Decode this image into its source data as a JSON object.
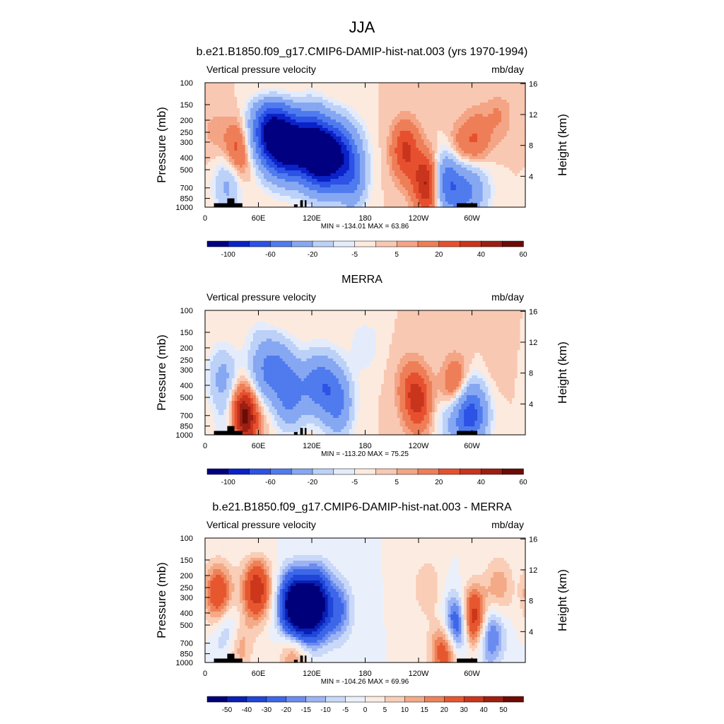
{
  "figure_title": "JJA",
  "colors": {
    "seq11": [
      "#000080",
      "#0a22c8",
      "#2c52e6",
      "#4f7bee",
      "#86a7f2",
      "#bcd1f8",
      "#e4ecfb",
      "#fdeade",
      "#f9c8b2",
      "#f4a585",
      "#ee7e57",
      "#e7502f",
      "#c9341c",
      "#9c1f12",
      "#6b0c06"
    ],
    "seq_diff": [
      "#00007a",
      "#0a1fb4",
      "#1f46d8",
      "#3d67e8",
      "#6a8bef",
      "#9cb3f4",
      "#c9d8f8",
      "#eaf0fb",
      "#fcebe1",
      "#f9cdb6",
      "#f4aa87",
      "#ee8158",
      "#e6572f",
      "#cc361b",
      "#a01f10",
      "#6f0a05"
    ]
  },
  "chart_data": [
    {
      "type": "heatmap",
      "title": "b.e21.B1850.f09_g17.CMIP6-DAMIP-hist-nat.003 (yrs 1970-1994)",
      "subtitle_left": "Vertical pressure velocity",
      "units": "mb/day",
      "ylabel": "Pressure (mb)",
      "ylabel_right": "Height (km)",
      "x_ticks": [
        "0",
        "60E",
        "120E",
        "180",
        "120W",
        "60W"
      ],
      "y_ticks": [
        "100",
        "150",
        "200",
        "250",
        "300",
        "400",
        "500",
        "700",
        "850",
        "1000"
      ],
      "y_ticks_right": [
        "16",
        "12",
        "8",
        "4"
      ],
      "stats": "MIN = -134.01  MAX =  63.86",
      "colorbar_labels": [
        "-100",
        "-60",
        "-20",
        "-5",
        "5",
        "20",
        "40",
        "60"
      ],
      "features": [
        {
          "lon": 37,
          "p": 350,
          "value": 28
        },
        {
          "lon": 26,
          "p": 650,
          "value": -25
        },
        {
          "lon": 75,
          "p": 240,
          "value": -95
        },
        {
          "lon": 90,
          "p": 350,
          "value": -85
        },
        {
          "lon": 118,
          "p": 300,
          "value": -90
        },
        {
          "lon": 132,
          "p": 450,
          "value": -80
        },
        {
          "lon": 150,
          "p": 350,
          "value": -60
        },
        {
          "lon": 165,
          "p": 600,
          "value": -40
        },
        {
          "lon": 225,
          "p": 350,
          "value": 32
        },
        {
          "lon": 250,
          "p": 650,
          "value": 45
        },
        {
          "lon": 272,
          "p": 600,
          "value": -45
        },
        {
          "lon": 285,
          "p": 400,
          "value": 22
        },
        {
          "lon": 292,
          "p": 700,
          "value": -50
        },
        {
          "lon": 305,
          "p": 300,
          "value": 20
        },
        {
          "lon": 330,
          "p": 180,
          "value": 10
        },
        {
          "lon": 120,
          "p": 110,
          "value": -8
        },
        {
          "lon": 10,
          "p": 250,
          "value": 6
        }
      ]
    },
    {
      "type": "heatmap",
      "title": "MERRA",
      "subtitle_left": "Vertical pressure velocity",
      "units": "mb/day",
      "ylabel": "Pressure (mb)",
      "ylabel_right": "Height (km)",
      "x_ticks": [
        "0",
        "60E",
        "120E",
        "180",
        "120W",
        "60W"
      ],
      "y_ticks": [
        "100",
        "150",
        "200",
        "250",
        "300",
        "400",
        "500",
        "700",
        "850",
        "1000"
      ],
      "y_ticks_right": [
        "16",
        "12",
        "8",
        "4"
      ],
      "stats": "MIN = -113.20  MAX =  75.25",
      "colorbar_labels": [
        "-100",
        "-60",
        "-20",
        "-5",
        "5",
        "20",
        "40",
        "60"
      ],
      "features": [
        {
          "lon": 20,
          "p": 350,
          "value": -25
        },
        {
          "lon": 40,
          "p": 650,
          "value": 25
        },
        {
          "lon": 45,
          "p": 750,
          "value": 40
        },
        {
          "lon": 30,
          "p": 800,
          "value": -20
        },
        {
          "lon": 75,
          "p": 300,
          "value": -50
        },
        {
          "lon": 95,
          "p": 500,
          "value": -40
        },
        {
          "lon": 130,
          "p": 400,
          "value": -55
        },
        {
          "lon": 150,
          "p": 600,
          "value": -35
        },
        {
          "lon": 230,
          "p": 400,
          "value": 14
        },
        {
          "lon": 240,
          "p": 550,
          "value": 30
        },
        {
          "lon": 282,
          "p": 450,
          "value": 35
        },
        {
          "lon": 290,
          "p": 700,
          "value": -50
        },
        {
          "lon": 300,
          "p": 650,
          "value": -35
        },
        {
          "lon": 330,
          "p": 250,
          "value": 4
        },
        {
          "lon": 180,
          "p": 180,
          "value": -10
        },
        {
          "lon": 60,
          "p": 120,
          "value": -6
        }
      ]
    },
    {
      "type": "heatmap",
      "title": "b.e21.B1850.f09_g17.CMIP6-DAMIP-hist-nat.003 - MERRA",
      "subtitle_left": "Vertical pressure velocity",
      "units": "mb/day",
      "ylabel": "Pressure (mb)",
      "ylabel_right": "Height (km)",
      "x_ticks": [
        "0",
        "60E",
        "120E",
        "180",
        "120W",
        "60W"
      ],
      "y_ticks": [
        "100",
        "150",
        "200",
        "250",
        "300",
        "400",
        "500",
        "700",
        "850",
        "1000"
      ],
      "y_ticks_right": [
        "16",
        "12",
        "8",
        "4"
      ],
      "stats": "MIN = -104.26  MAX =  69.96",
      "colorbar_labels": [
        "-50",
        "-40",
        "-30",
        "-20",
        "-15",
        "-10",
        "-5",
        "0",
        "5",
        "10",
        "15",
        "20",
        "30",
        "40",
        "50"
      ],
      "features": [
        {
          "lon": 15,
          "p": 280,
          "value": 30
        },
        {
          "lon": 28,
          "p": 600,
          "value": -25
        },
        {
          "lon": 35,
          "p": 700,
          "value": 25
        },
        {
          "lon": 58,
          "p": 260,
          "value": 38
        },
        {
          "lon": 100,
          "p": 320,
          "value": -45
        },
        {
          "lon": 112,
          "p": 420,
          "value": -50
        },
        {
          "lon": 125,
          "p": 300,
          "value": -40
        },
        {
          "lon": 150,
          "p": 380,
          "value": -20
        },
        {
          "lon": 100,
          "p": 800,
          "value": 20
        },
        {
          "lon": 250,
          "p": 250,
          "value": 10
        },
        {
          "lon": 270,
          "p": 800,
          "value": 30
        },
        {
          "lon": 285,
          "p": 500,
          "value": -45
        },
        {
          "lon": 300,
          "p": 450,
          "value": 50
        },
        {
          "lon": 320,
          "p": 600,
          "value": -25
        },
        {
          "lon": 330,
          "p": 250,
          "value": 14
        }
      ]
    }
  ]
}
